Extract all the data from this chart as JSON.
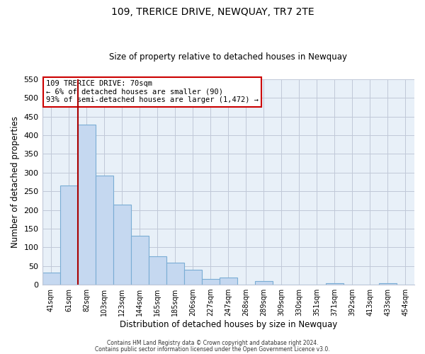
{
  "title": "109, TRERICE DRIVE, NEWQUAY, TR7 2TE",
  "subtitle": "Size of property relative to detached houses in Newquay",
  "xlabel": "Distribution of detached houses by size in Newquay",
  "ylabel": "Number of detached properties",
  "bar_labels": [
    "41sqm",
    "61sqm",
    "82sqm",
    "103sqm",
    "123sqm",
    "144sqm",
    "165sqm",
    "185sqm",
    "206sqm",
    "227sqm",
    "247sqm",
    "268sqm",
    "289sqm",
    "309sqm",
    "330sqm",
    "351sqm",
    "371sqm",
    "392sqm",
    "413sqm",
    "433sqm",
    "454sqm"
  ],
  "bar_values": [
    32,
    265,
    428,
    292,
    215,
    130,
    76,
    59,
    40,
    15,
    20,
    0,
    10,
    0,
    0,
    0,
    4,
    0,
    0,
    4,
    0
  ],
  "bar_color": "#c5d8f0",
  "bar_edge_color": "#7aadd4",
  "plot_bg_color": "#e8f0f8",
  "grid_color": "#c0c8d8",
  "ylim": [
    0,
    550
  ],
  "yticks": [
    0,
    50,
    100,
    150,
    200,
    250,
    300,
    350,
    400,
    450,
    500,
    550
  ],
  "marker_color": "#aa0000",
  "annotation_title": "109 TRERICE DRIVE: 70sqm",
  "annotation_line1": "← 6% of detached houses are smaller (90)",
  "annotation_line2": "93% of semi-detached houses are larger (1,472) →",
  "annotation_box_color": "#ffffff",
  "annotation_box_edge": "#cc0000",
  "footer1": "Contains HM Land Registry data © Crown copyright and database right 2024.",
  "footer2": "Contains public sector information licensed under the Open Government Licence v3.0."
}
